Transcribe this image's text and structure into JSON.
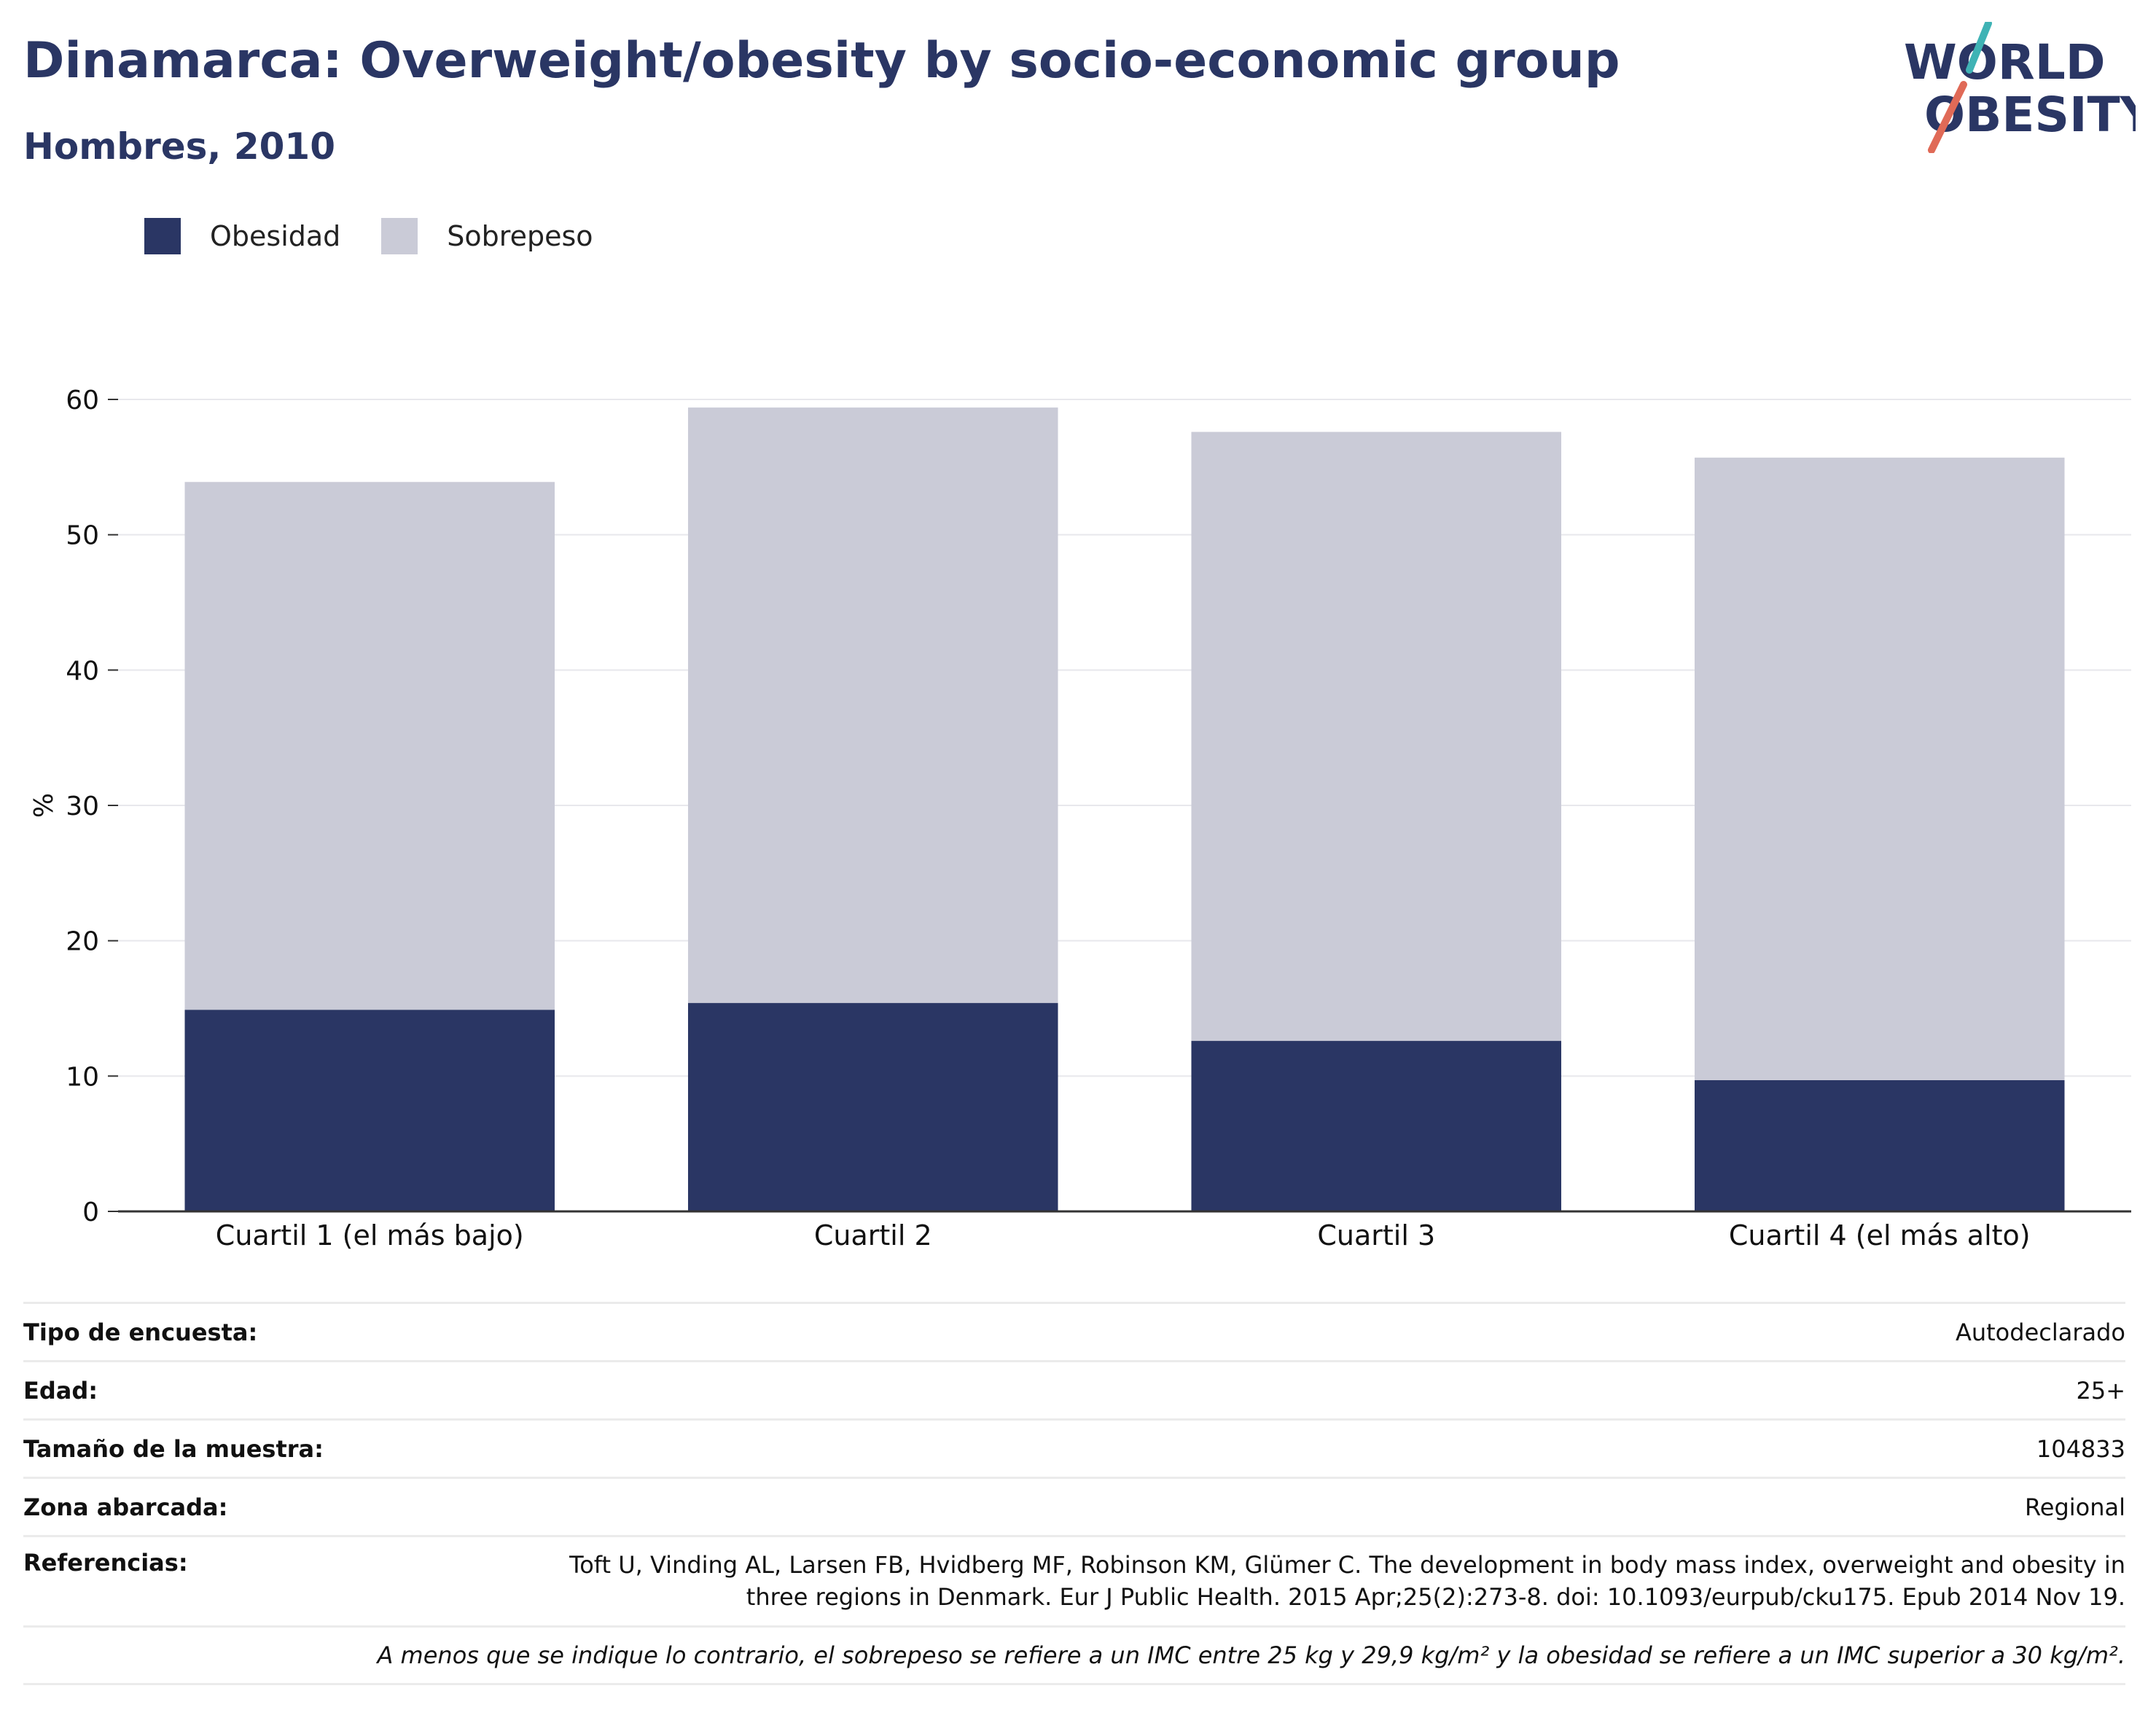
{
  "header": {
    "title": "Dinamarca: Overweight/obesity by socio-economic group",
    "subtitle": "Hombres, 2010"
  },
  "logo": {
    "line1": "WORLD",
    "line2": "OBESITY",
    "accent_teal": "#3fb3b5",
    "accent_red": "#e06a57"
  },
  "legend": [
    {
      "label": "Obesidad",
      "color": "#2a3664"
    },
    {
      "label": "Sobrepeso",
      "color": "#cacbd7"
    }
  ],
  "chart_data": {
    "type": "bar",
    "stacked": true,
    "categories": [
      "Cuartil 1 (el más bajo)",
      "Cuartil 2",
      "Cuartil 3",
      "Cuartil 4 (el más alto)"
    ],
    "series": [
      {
        "name": "Obesidad",
        "values": [
          14.9,
          15.4,
          12.6,
          9.7
        ],
        "color": "#2a3664"
      },
      {
        "name": "Sobrepeso",
        "values": [
          39.0,
          44.0,
          45.0,
          46.0
        ],
        "color": "#cacbd7"
      }
    ],
    "ylabel": "%",
    "ylim": [
      0,
      60
    ],
    "yticks": [
      0,
      10,
      20,
      30,
      40,
      50,
      60
    ],
    "grid": true,
    "legend_position": "top-left"
  },
  "meta": {
    "rows": [
      {
        "label": "Tipo de encuesta:",
        "value": "Autodeclarado"
      },
      {
        "label": "Edad:",
        "value": "25+"
      },
      {
        "label": "Tamaño de la muestra:",
        "value": "104833"
      },
      {
        "label": "Zona abarcada:",
        "value": "Regional"
      }
    ],
    "references_label": "Referencias:",
    "references_value": "Toft U, Vinding AL, Larsen FB, Hvidberg MF, Robinson KM, Glümer C. The development in body mass index, overweight and obesity in three regions in Denmark. Eur J Public Health. 2015 Apr;25(2):273-8. doi: 10.1093/eurpub/cku175. Epub 2014 Nov 19.",
    "note": "A menos que se indique lo contrario, el sobrepeso se refiere a un IMC entre 25 kg y 29,9 kg/m² y la obesidad se refiere a un IMC superior a 30 kg/m²."
  }
}
